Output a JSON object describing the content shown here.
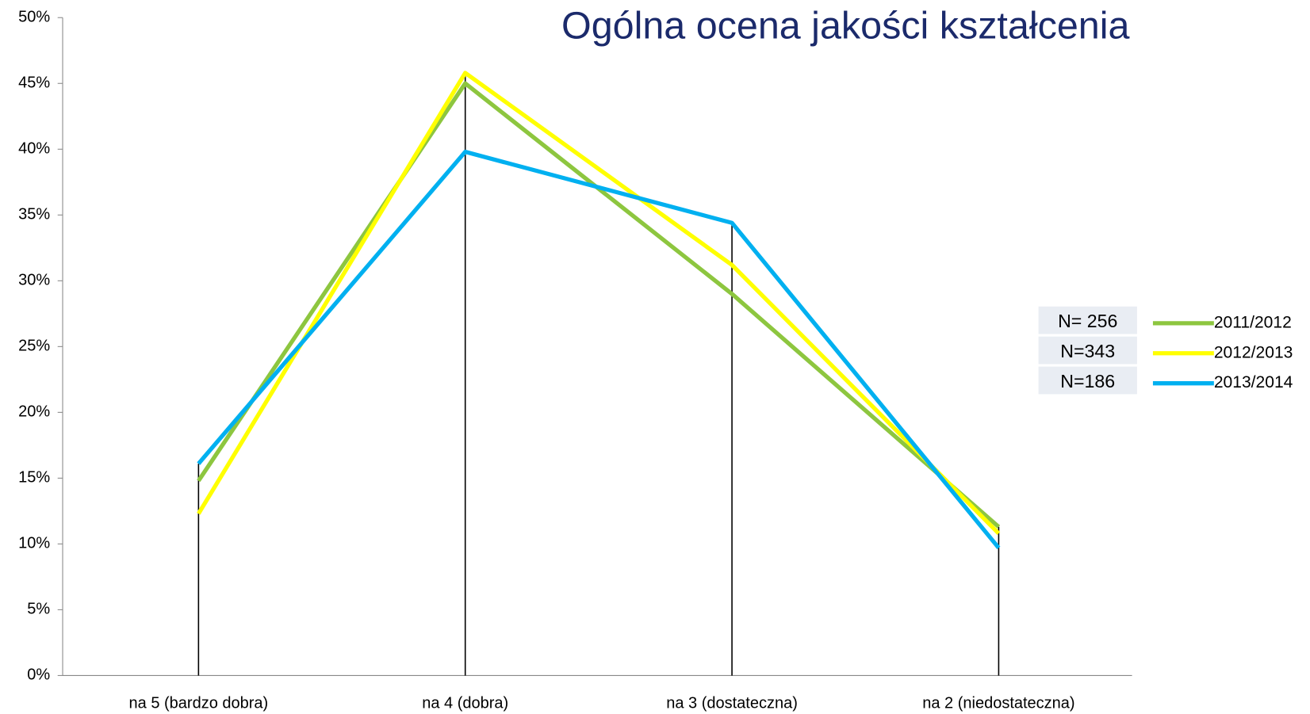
{
  "chart_data": {
    "type": "line",
    "title": "Ogólna ocena jakości kształcenia",
    "categories": [
      "na 5 (bardzo dobra)",
      "na 4 (dobra)",
      "na 3 (dostateczna)",
      "na 2 (niedostateczna)"
    ],
    "series": [
      {
        "name": "2011/2012",
        "color": "#8dc63f",
        "values": [
          14.8,
          45.0,
          29.0,
          11.3
        ]
      },
      {
        "name": "2012/2013",
        "color": "#ffff00",
        "values": [
          12.3,
          45.8,
          31.2,
          10.8
        ]
      },
      {
        "name": "2013/2014",
        "color": "#00b0f0",
        "values": [
          16.1,
          39.8,
          34.4,
          9.7
        ]
      }
    ],
    "annotations": [
      "N= 256",
      "N=343",
      "N=186"
    ],
    "ylim": [
      0,
      50
    ],
    "yticks": [
      {
        "value": 0,
        "label": "0%"
      },
      {
        "value": 5,
        "label": "5%"
      },
      {
        "value": 10,
        "label": "10%"
      },
      {
        "value": 15,
        "label": "15%"
      },
      {
        "value": 20,
        "label": "20%"
      },
      {
        "value": 25,
        "label": "25%"
      },
      {
        "value": 30,
        "label": "30%"
      },
      {
        "value": 35,
        "label": "35%"
      },
      {
        "value": 40,
        "label": "40%"
      },
      {
        "value": 45,
        "label": "45%"
      },
      {
        "value": 50,
        "label": "50%"
      }
    ],
    "grid": false,
    "legend": "right"
  }
}
